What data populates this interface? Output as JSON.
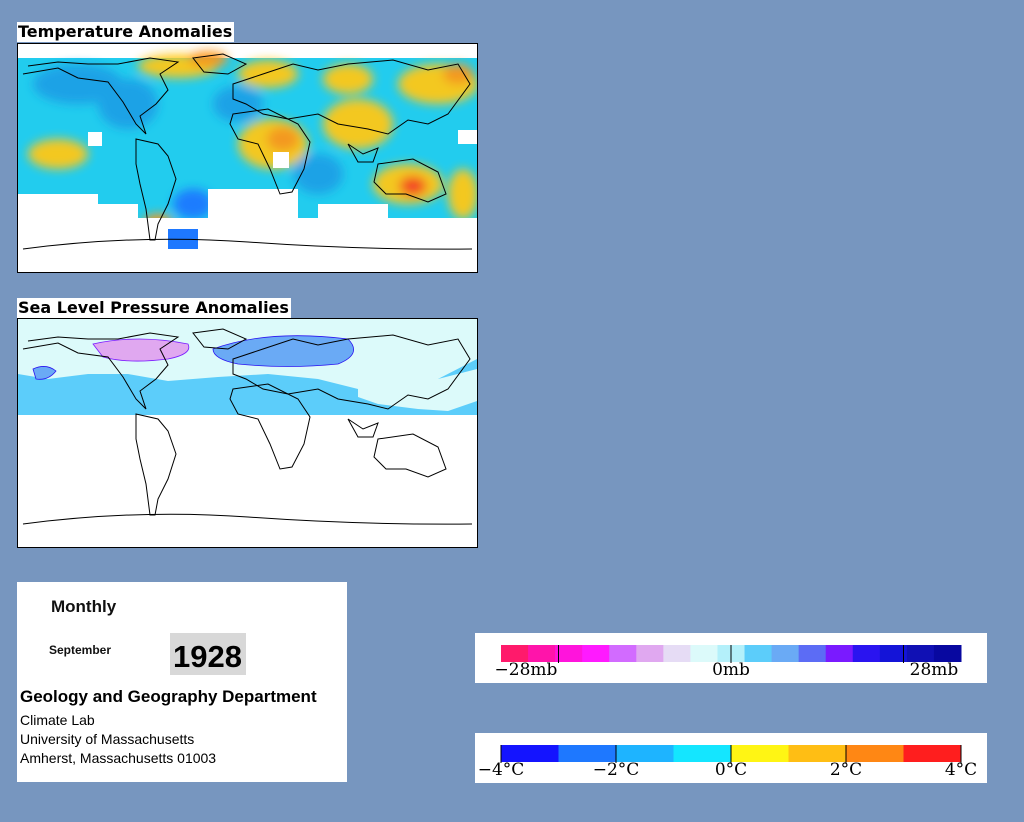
{
  "maps": {
    "temperature": {
      "title": "Temperature Anomalies"
    },
    "sea_level_pressure": {
      "title": "Sea Level Pressure Anomalies"
    }
  },
  "info": {
    "period": "Monthly",
    "month": "September",
    "year": "1928",
    "department": "Geology and Geography Department",
    "lab": "Climate Lab",
    "university": "University of Massachusetts",
    "city": "Amherst, Massachusetts 01003"
  },
  "legends": {
    "pressure": {
      "labels": [
        "−28mb",
        "0mb",
        "28mb"
      ],
      "colors": [
        "#ff1a6b",
        "#ff14aa",
        "#ff14dc",
        "#ff1aff",
        "#d26bff",
        "#e0a8f0",
        "#e6dcf5",
        "#dcfafa",
        "#b4f0fa",
        "#5ccdfa",
        "#6aaaf5",
        "#5c6cf5",
        "#7a1aff",
        "#2a14f0",
        "#1414d8",
        "#1010b4",
        "#0808a0"
      ]
    },
    "temperature": {
      "labels": [
        "−4°C",
        "−2°C",
        "0°C",
        "2°C",
        "4°C"
      ],
      "colors": [
        "#1414ff",
        "#1e78ff",
        "#1eb4ff",
        "#14e6ff",
        "#fff514",
        "#ffbe14",
        "#ff8714",
        "#ff1e1e"
      ]
    }
  }
}
